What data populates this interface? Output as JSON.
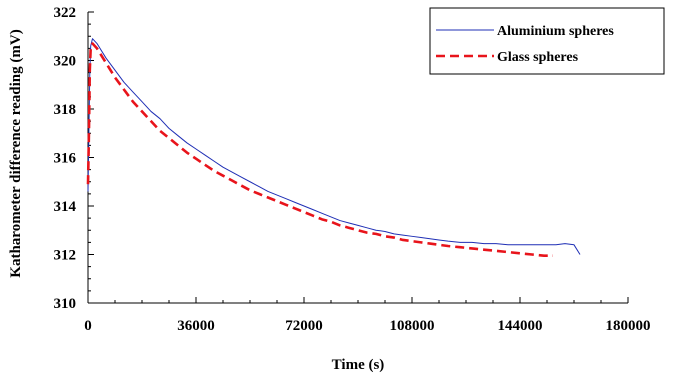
{
  "chart_data": {
    "type": "line",
    "xlabel": "Time (s)",
    "ylabel": "Katharometer difference reading (mV)",
    "xlim": [
      0,
      180000
    ],
    "ylim": [
      310,
      322
    ],
    "xticks": [
      0,
      36000,
      72000,
      108000,
      144000,
      180000
    ],
    "yticks": [
      310,
      312,
      314,
      316,
      318,
      320,
      322
    ],
    "xtick_labels": [
      "0",
      "36000",
      "72000",
      "108000",
      "144000",
      "180000"
    ],
    "ytick_labels": [
      "310",
      "312",
      "314",
      "316",
      "318",
      "320",
      "322"
    ],
    "grid": false,
    "legend_position": "top-right",
    "series": [
      {
        "name": "Aluminium spheres",
        "color": "#1f2fb5",
        "style": "solid",
        "points": [
          [
            0,
            314.6
          ],
          [
            300,
            317.0
          ],
          [
            600,
            319.5
          ],
          [
            900,
            320.6
          ],
          [
            1500,
            320.9
          ],
          [
            3000,
            320.7
          ],
          [
            6000,
            320.1
          ],
          [
            9000,
            319.6
          ],
          [
            12000,
            319.1
          ],
          [
            15000,
            318.7
          ],
          [
            18000,
            318.3
          ],
          [
            21000,
            317.9
          ],
          [
            24000,
            317.6
          ],
          [
            27000,
            317.2
          ],
          [
            30000,
            316.9
          ],
          [
            33000,
            316.6
          ],
          [
            36000,
            316.35
          ],
          [
            39000,
            316.1
          ],
          [
            42000,
            315.85
          ],
          [
            45000,
            315.6
          ],
          [
            48000,
            315.4
          ],
          [
            51000,
            315.2
          ],
          [
            54000,
            315.0
          ],
          [
            57000,
            314.8
          ],
          [
            60000,
            314.6
          ],
          [
            63000,
            314.45
          ],
          [
            66000,
            314.3
          ],
          [
            69000,
            314.15
          ],
          [
            72000,
            314.0
          ],
          [
            75000,
            313.85
          ],
          [
            78000,
            313.7
          ],
          [
            81000,
            313.55
          ],
          [
            84000,
            313.4
          ],
          [
            87000,
            313.3
          ],
          [
            90000,
            313.2
          ],
          [
            93000,
            313.1
          ],
          [
            96000,
            313.0
          ],
          [
            99000,
            312.95
          ],
          [
            102000,
            312.85
          ],
          [
            105000,
            312.8
          ],
          [
            108000,
            312.75
          ],
          [
            111000,
            312.7
          ],
          [
            114000,
            312.65
          ],
          [
            117000,
            312.6
          ],
          [
            120000,
            312.55
          ],
          [
            124000,
            312.5
          ],
          [
            128000,
            312.5
          ],
          [
            132000,
            312.45
          ],
          [
            136000,
            312.45
          ],
          [
            140000,
            312.4
          ],
          [
            144000,
            312.4
          ],
          [
            148000,
            312.4
          ],
          [
            152000,
            312.4
          ],
          [
            156000,
            312.4
          ],
          [
            159000,
            312.45
          ],
          [
            162000,
            312.4
          ],
          [
            164000,
            312.0
          ]
        ]
      },
      {
        "name": "Glass spheres",
        "color": "#e8141b",
        "style": "dashed",
        "points": [
          [
            0,
            314.9
          ],
          [
            300,
            316.9
          ],
          [
            600,
            319.6
          ],
          [
            900,
            320.5
          ],
          [
            1500,
            320.7
          ],
          [
            3000,
            320.5
          ],
          [
            6000,
            319.9
          ],
          [
            9000,
            319.3
          ],
          [
            12000,
            318.8
          ],
          [
            15000,
            318.3
          ],
          [
            18000,
            317.9
          ],
          [
            21000,
            317.5
          ],
          [
            24000,
            317.1
          ],
          [
            27000,
            316.8
          ],
          [
            30000,
            316.5
          ],
          [
            33000,
            316.2
          ],
          [
            36000,
            315.95
          ],
          [
            39000,
            315.7
          ],
          [
            42000,
            315.45
          ],
          [
            45000,
            315.25
          ],
          [
            48000,
            315.05
          ],
          [
            51000,
            314.85
          ],
          [
            54000,
            314.65
          ],
          [
            57000,
            314.5
          ],
          [
            60000,
            314.35
          ],
          [
            63000,
            314.2
          ],
          [
            66000,
            314.05
          ],
          [
            69000,
            313.9
          ],
          [
            72000,
            313.75
          ],
          [
            75000,
            313.6
          ],
          [
            78000,
            313.45
          ],
          [
            81000,
            313.35
          ],
          [
            84000,
            313.2
          ],
          [
            87000,
            313.1
          ],
          [
            90000,
            313.0
          ],
          [
            93000,
            312.9
          ],
          [
            96000,
            312.85
          ],
          [
            99000,
            312.75
          ],
          [
            102000,
            312.7
          ],
          [
            105000,
            312.6
          ],
          [
            108000,
            312.55
          ],
          [
            111000,
            312.5
          ],
          [
            114000,
            312.45
          ],
          [
            117000,
            312.4
          ],
          [
            120000,
            312.35
          ],
          [
            124000,
            312.3
          ],
          [
            128000,
            312.25
          ],
          [
            132000,
            312.2
          ],
          [
            136000,
            312.15
          ],
          [
            140000,
            312.1
          ],
          [
            144000,
            312.05
          ],
          [
            148000,
            312.0
          ],
          [
            152000,
            311.95
          ],
          [
            155000,
            311.95
          ]
        ]
      }
    ]
  }
}
